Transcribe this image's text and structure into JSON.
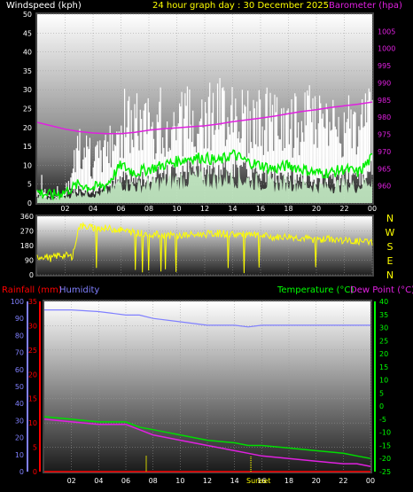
{
  "header": {
    "wind_label": "Windspeed (kph)",
    "title": "24 hour graph day : 30 December 2025",
    "baro_label": "Barometer (hpa)"
  },
  "compass": [
    "N",
    "W",
    "S",
    "E",
    "N"
  ],
  "lower_header": {
    "rain_label": "Rainfall (mm)",
    "humidity_label": "Humidity",
    "temp_label": "Temperature (°C)",
    "dew_label": "Dew Point (°C)"
  },
  "sunset_label": "Sunset",
  "colors": {
    "wind_gust": "#ffffff",
    "wind_avg": "#c8f0c8",
    "wind_avg_line": "#00ee00",
    "barometer": "#e020e0",
    "direction": "#ffff00",
    "humidity": "#8080ff",
    "temperature": "#00dd00",
    "dewpoint": "#e020e0",
    "rainfall": "#ff0000",
    "title": "#ffff00",
    "temp_label": "#00ff00"
  },
  "chart_data": [
    {
      "type": "area",
      "title": "24 hour graph day : 30 December 2025",
      "ylabel": "Windspeed (kph)",
      "y2label": "Barometer (hpa)",
      "xlim": [
        0,
        24
      ],
      "ylim": [
        0,
        50
      ],
      "y2lim": [
        955,
        1010
      ],
      "x_ticks": [
        "02",
        "04",
        "06",
        "08",
        "10",
        "12",
        "14",
        "16",
        "18",
        "20",
        "22",
        "00"
      ],
      "y_ticks": [
        0,
        5,
        10,
        15,
        20,
        25,
        30,
        35,
        40,
        45,
        50
      ],
      "y2_ticks": [
        960,
        965,
        970,
        975,
        980,
        985,
        990,
        995,
        1000,
        1005
      ],
      "x": [
        0,
        1,
        2,
        3,
        4,
        5,
        6,
        7,
        8,
        9,
        10,
        11,
        12,
        13,
        14,
        15,
        16,
        17,
        18,
        19,
        20,
        21,
        22,
        23,
        24
      ],
      "series": [
        {
          "name": "gust",
          "values": [
            5,
            3,
            2,
            22,
            15,
            20,
            28,
            30,
            28,
            30,
            30,
            32,
            35,
            33,
            38,
            30,
            32,
            30,
            28,
            30,
            30,
            28,
            30,
            28,
            32
          ]
        },
        {
          "name": "average",
          "values": [
            3,
            2,
            3,
            5,
            4,
            5,
            10,
            8,
            9,
            10,
            11,
            12,
            12,
            11,
            13,
            11,
            10,
            9,
            10,
            9,
            8,
            8,
            9,
            8,
            12
          ]
        },
        {
          "name": "Barometer (hpa)",
          "values": [
            978.5,
            977.5,
            976.5,
            975.8,
            975.4,
            975.2,
            975.2,
            975.6,
            976.2,
            976.6,
            976.9,
            977.2,
            977.5,
            978.0,
            978.7,
            979.2,
            979.7,
            980.3,
            981.0,
            981.7,
            982.2,
            982.8,
            983.3,
            983.8,
            984.4
          ]
        }
      ]
    },
    {
      "type": "line",
      "ylabel": "",
      "xlim": [
        0,
        24
      ],
      "ylim": [
        0,
        360
      ],
      "y_ticks": [
        0,
        90,
        180,
        270,
        360
      ],
      "x_ticks": [
        "02",
        "04",
        "06",
        "08",
        "10",
        "12",
        "14",
        "16",
        "18",
        "20",
        "22",
        "00"
      ],
      "x": [
        0,
        0.5,
        1,
        1.5,
        2,
        2.5,
        3,
        4,
        5,
        6,
        7,
        8,
        9,
        10,
        11,
        12,
        13,
        14,
        15,
        16,
        17,
        18,
        19,
        20,
        21,
        22,
        23,
        24
      ],
      "series": [
        {
          "name": "direction",
          "values": [
            110,
            115,
            100,
            120,
            120,
            110,
            300,
            290,
            285,
            275,
            260,
            250,
            245,
            240,
            245,
            250,
            255,
            250,
            245,
            240,
            230,
            235,
            225,
            215,
            220,
            210,
            205,
            200
          ]
        }
      ]
    },
    {
      "type": "line",
      "xlim": [
        0,
        24
      ],
      "ylim": [
        0,
        35
      ],
      "y_ticks": [
        0,
        5,
        10,
        15,
        20,
        25,
        30,
        35
      ],
      "y_left_ticks": [
        0,
        10,
        20,
        30,
        40,
        50,
        60,
        70,
        80,
        90,
        100
      ],
      "y_right_ticks": [
        -25,
        -20,
        -15,
        -10,
        -5,
        0,
        5,
        10,
        15,
        20,
        25,
        30,
        35,
        40
      ],
      "x_ticks": [
        "02",
        "04",
        "06",
        "08",
        "10",
        "12",
        "14",
        "16",
        "18",
        "20",
        "22",
        "00"
      ],
      "x": [
        0,
        2,
        4,
        5,
        6,
        7,
        8,
        10,
        12,
        14,
        15,
        16,
        18,
        20,
        22,
        23,
        24
      ],
      "series": [
        {
          "name": "Humidity",
          "values": [
            95,
            95,
            94,
            93,
            92,
            92,
            90,
            88,
            86,
            86,
            85,
            86,
            86,
            86,
            86,
            86,
            86
          ]
        },
        {
          "name": "Temperature (°C)",
          "values": [
            -4,
            -5,
            -6,
            -6,
            -6,
            -8,
            -9,
            -11,
            -13,
            -14,
            -15,
            -15,
            -16,
            -17,
            -18,
            -19,
            -20
          ]
        },
        {
          "name": "Dew Point (°C)",
          "values": [
            -5,
            -6,
            -7,
            -7,
            -7,
            -9,
            -11,
            -13,
            -15,
            -17,
            -18,
            -19,
            -20,
            -21,
            -22,
            -22,
            -23
          ]
        },
        {
          "name": "Rainfall (mm)",
          "values": [
            0,
            0,
            0,
            0,
            0,
            0,
            0,
            0,
            0,
            0,
            0,
            0,
            0,
            0,
            0,
            0,
            0
          ]
        }
      ]
    }
  ]
}
